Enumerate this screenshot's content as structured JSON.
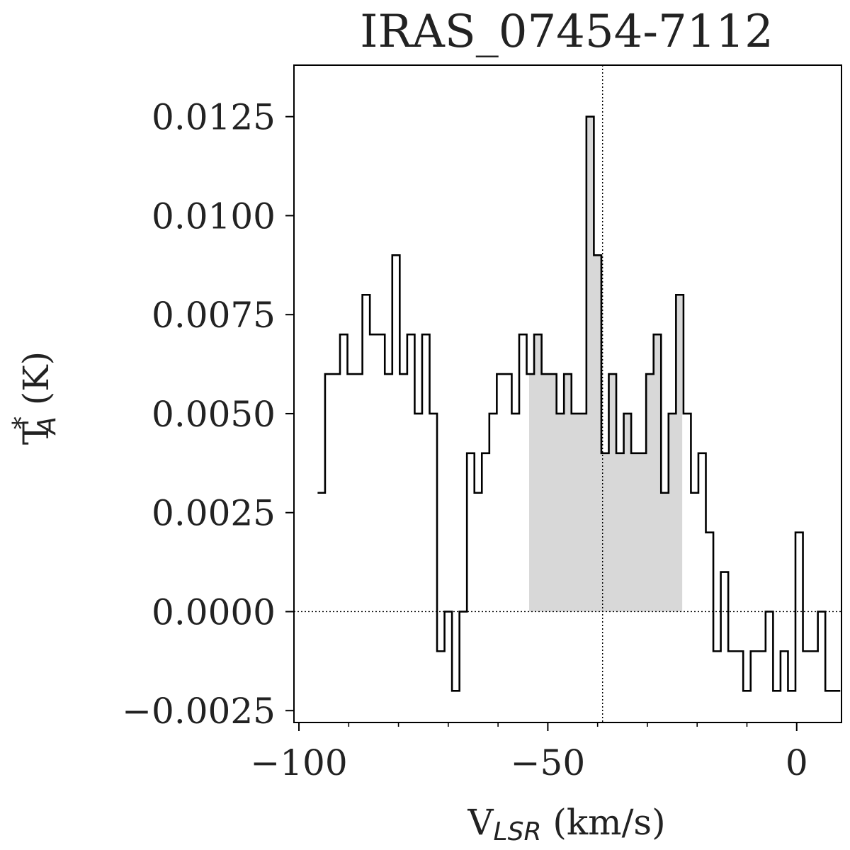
{
  "chart_data": {
    "type": "line",
    "title": "IRAS_07454-7112",
    "xlabel": {
      "main": "V",
      "sub": "LSR",
      "unit": " (km/s)"
    },
    "ylabel": {
      "main": "T",
      "sub": "A",
      "sup": "*",
      "unit": " (K)"
    },
    "xlim": [
      -101,
      9
    ],
    "ylim": [
      -0.0028,
      0.0138
    ],
    "xticks": [
      -100,
      -50,
      0
    ],
    "xtick_labels": [
      "−100",
      "−50",
      "0"
    ],
    "yticks": [
      -0.0025,
      0.0,
      0.0025,
      0.005,
      0.0075,
      0.01,
      0.0125
    ],
    "ytick_labels": [
      "−0.0025",
      "0.0000",
      "0.0025",
      "0.0050",
      "0.0075",
      "0.0100",
      "0.0125"
    ],
    "line_color": "#000000",
    "fill_color": "#d8d8d8",
    "grid": false,
    "bin_width": 1.5,
    "x": [
      -95.5,
      -94.0,
      -92.5,
      -91.0,
      -89.5,
      -88.0,
      -86.5,
      -85.0,
      -83.5,
      -82.0,
      -80.5,
      -79.0,
      -77.5,
      -76.0,
      -74.5,
      -73.0,
      -71.5,
      -70.0,
      -68.5,
      -67.0,
      -65.5,
      -64.0,
      -62.5,
      -61.0,
      -59.5,
      -58.0,
      -56.5,
      -55.0,
      -53.5,
      -52.0,
      -50.5,
      -49.0,
      -47.5,
      -46.0,
      -44.5,
      -43.0,
      -41.5,
      -40.0,
      -38.5,
      -37.0,
      -35.5,
      -34.0,
      -32.5,
      -31.0,
      -29.5,
      -28.0,
      -26.5,
      -25.0,
      -23.5,
      -22.0,
      -20.5,
      -19.0,
      -17.5,
      -16.0,
      -14.5,
      -13.0,
      -11.5,
      -10.0,
      -8.5,
      -7.0,
      -5.5,
      -4.0,
      -2.5,
      -1.0,
      0.5,
      2.0,
      3.5,
      5.0,
      6.5,
      8.0
    ],
    "y": [
      0.003,
      0.006,
      0.006,
      0.007,
      0.006,
      0.006,
      0.008,
      0.007,
      0.007,
      0.006,
      0.009,
      0.006,
      0.007,
      0.005,
      0.007,
      0.005,
      -0.001,
      0.0,
      -0.002,
      0.0,
      0.004,
      0.003,
      0.004,
      0.005,
      0.006,
      0.006,
      0.005,
      0.007,
      0.006,
      0.007,
      0.006,
      0.006,
      0.005,
      0.006,
      0.005,
      0.005,
      0.0125,
      0.009,
      0.004,
      0.006,
      0.004,
      0.005,
      0.004,
      0.004,
      0.006,
      0.007,
      0.003,
      0.005,
      0.008,
      0.005,
      0.003,
      0.004,
      0.002,
      -0.001,
      0.001,
      -0.001,
      -0.001,
      -0.002,
      -0.001,
      -0.001,
      0.0,
      -0.002,
      -0.001,
      -0.002,
      0.002,
      -0.001,
      -0.001,
      0.0,
      -0.002,
      -0.002
    ],
    "shaded_range": [
      -53.75,
      -23.0
    ],
    "reference_line_x": -39.0,
    "reference_line_y": 0.0
  }
}
